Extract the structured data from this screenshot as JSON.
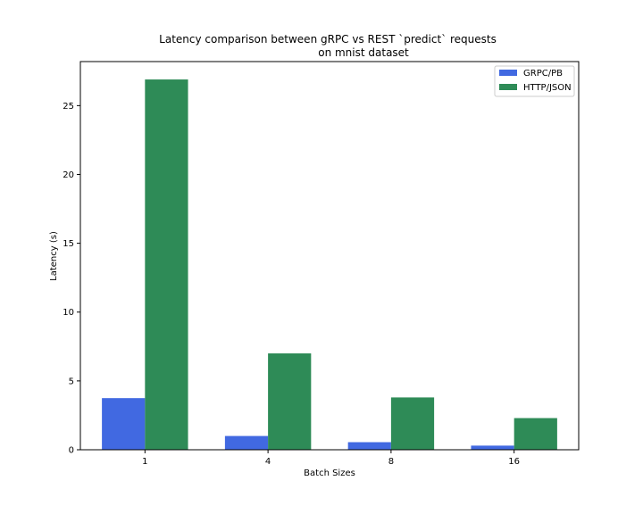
{
  "chart_data": {
    "type": "bar",
    "title": "Latency comparison between gRPC vs REST `predict` requests",
    "subtitle": "on  mnist dataset",
    "xlabel": "Batch Sizes",
    "ylabel": "Latency (s)",
    "categories": [
      "1",
      "4",
      "8",
      "16"
    ],
    "series": [
      {
        "name": "GRPC/PB",
        "values": [
          3.75,
          1.0,
          0.55,
          0.3
        ],
        "color": "#4169e1"
      },
      {
        "name": "HTTP/JSON",
        "values": [
          26.9,
          7.0,
          3.8,
          2.3
        ],
        "color": "#2e8b57"
      }
    ],
    "ylim": [
      0,
      28.2
    ],
    "yticks": [
      0,
      5,
      10,
      15,
      20,
      25
    ],
    "grid": false,
    "legend": "top-right"
  }
}
